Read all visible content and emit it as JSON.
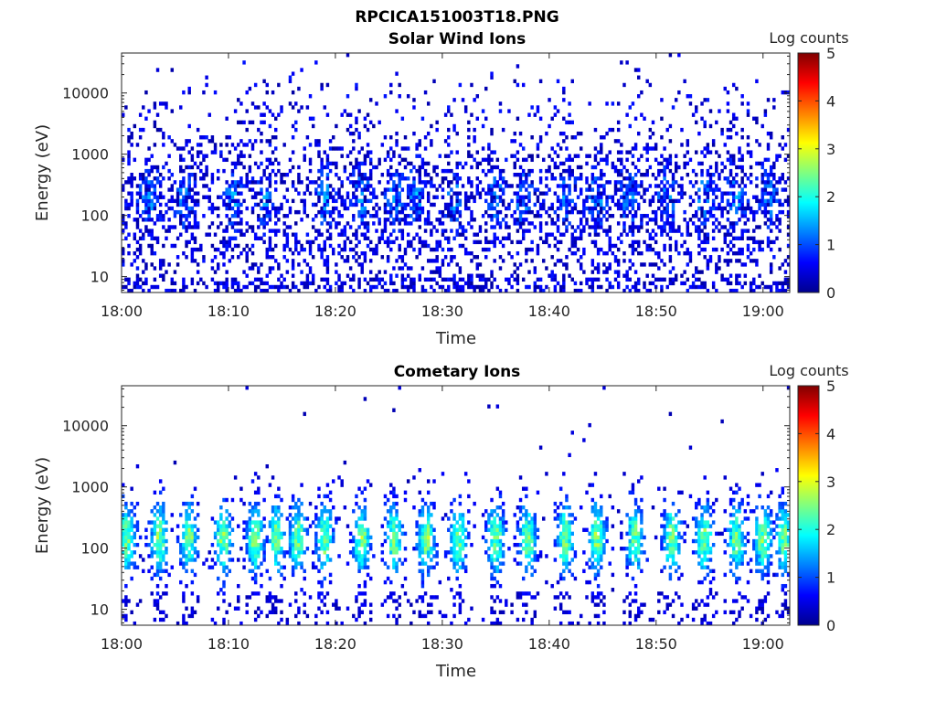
{
  "figure_title": "RPCICA151003T18.PNG",
  "chart_data": [
    {
      "type": "heatmap",
      "title": "Solar Wind Ions",
      "xlabel": "Time",
      "ylabel": "Energy (eV)",
      "x_ticks": [
        "18:00",
        "18:10",
        "18:20",
        "18:30",
        "18:40",
        "18:50",
        "19:00"
      ],
      "xlim": [
        "18:00",
        "19:02.5"
      ],
      "y_scale": "log",
      "y_ticks": [
        10,
        100,
        1000,
        10000
      ],
      "ylim": [
        5.5,
        45000
      ],
      "colorbar": {
        "label": "Log counts",
        "range": [
          0,
          5
        ],
        "ticks": [
          0,
          1,
          2,
          3,
          4,
          5
        ],
        "colormap": "jet"
      },
      "pattern": "sparse counts 0-1.5 spread across all energies; periodic bursts 60-700 eV",
      "burst_minutes": [
        2.5,
        6.0,
        10.5,
        13.5,
        19.0,
        22.5,
        25.5,
        27.5,
        31.0,
        35.0,
        37.5,
        41.5,
        44.5,
        47.5,
        51.0,
        54.5,
        57.5,
        60.5
      ],
      "grid": false
    },
    {
      "type": "heatmap",
      "title": "Cometary Ions",
      "xlabel": "Time",
      "ylabel": "Energy (eV)",
      "x_ticks": [
        "18:00",
        "18:10",
        "18:20",
        "18:30",
        "18:40",
        "18:50",
        "19:00"
      ],
      "xlim": [
        "18:00",
        "19:02.5"
      ],
      "y_scale": "log",
      "y_ticks": [
        10,
        100,
        1000,
        10000
      ],
      "ylim": [
        5.5,
        45000
      ],
      "colorbar": {
        "label": "Log counts",
        "range": [
          0,
          5
        ],
        "ticks": [
          0,
          1,
          2,
          3,
          4,
          5
        ],
        "colormap": "jet"
      },
      "pattern": "periodic vertical bursts 20-2000 eV, peak ~2.5 log counts near 150 eV",
      "burst_minutes": [
        0.5,
        3.5,
        6.3,
        9.5,
        12.5,
        14.5,
        16.5,
        19.0,
        22.5,
        25.5,
        28.5,
        31.5,
        35.0,
        38.0,
        41.5,
        44.5,
        48.0,
        51.5,
        54.5,
        57.5,
        60.0,
        62.0
      ],
      "grid": false
    }
  ]
}
